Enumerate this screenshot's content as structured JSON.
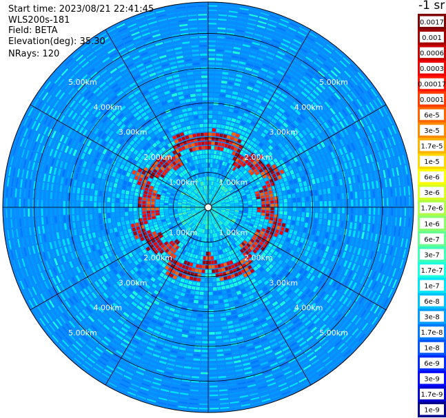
{
  "header": {
    "start_time": "Start time: 2023/08/21 22:41:45",
    "instrument": "WLS200s-181",
    "field": "Field: BETA",
    "elevation": "Elevation(deg): 35.30",
    "nrays": "NRays: 120"
  },
  "colorbar": {
    "title": "-1 sr",
    "labels": [
      "0.0017",
      "0.001",
      "0.0006",
      "0.0003",
      "0.00017",
      "0.0001",
      "6e-5",
      "3e-5",
      "1.7e-5",
      "1e-5",
      "6e-6",
      "3e-6",
      "1.7e-6",
      "1e-6",
      "6e-7",
      "3e-7",
      "1.7e-7",
      "1e-7",
      "6e-8",
      "3e-8",
      "1.7e-8",
      "1e-8",
      "6e-9",
      "3e-9",
      "1.7e-9",
      "1e-9"
    ],
    "colors": [
      "#7f0000",
      "#a30000",
      "#c80000",
      "#ee0000",
      "#ff1500",
      "#ff3c00",
      "#ff6400",
      "#ff8a00",
      "#ffb200",
      "#ffd700",
      "#fcff00",
      "#d7ff1f",
      "#b0ff47",
      "#8bff6c",
      "#65ff92",
      "#3fffb7",
      "#1affdd",
      "#00e4f8",
      "#00c0ff",
      "#009cff",
      "#0078ff",
      "#0054ff",
      "#002cff",
      "#0008ff",
      "#0000d1",
      "#00008d"
    ]
  },
  "chart_data": {
    "type": "heatmap",
    "projection": "polar-ppi",
    "field": "BETA",
    "elevation_deg": 35.3,
    "nrays": 120,
    "range_rings_km": [
      1.0,
      2.0,
      3.0,
      4.0,
      5.0
    ],
    "ring_labels": [
      "1.00km",
      "2.00km",
      "3.00km",
      "4.00km",
      "5.00km"
    ],
    "max_range_km": 5.9,
    "spoke_angles_deg": [
      0,
      30,
      60,
      90,
      120,
      150,
      180,
      210,
      240,
      270,
      300,
      330
    ],
    "features": {
      "high_backscatter_ring_radius_km": [
        1.6,
        2.1
      ],
      "high_backscatter_ring_level": "1e-4 to 1.7e-4",
      "background_level": "1e-8 to 3e-8",
      "near_field_level": "1e-7 to 6e-7"
    }
  }
}
